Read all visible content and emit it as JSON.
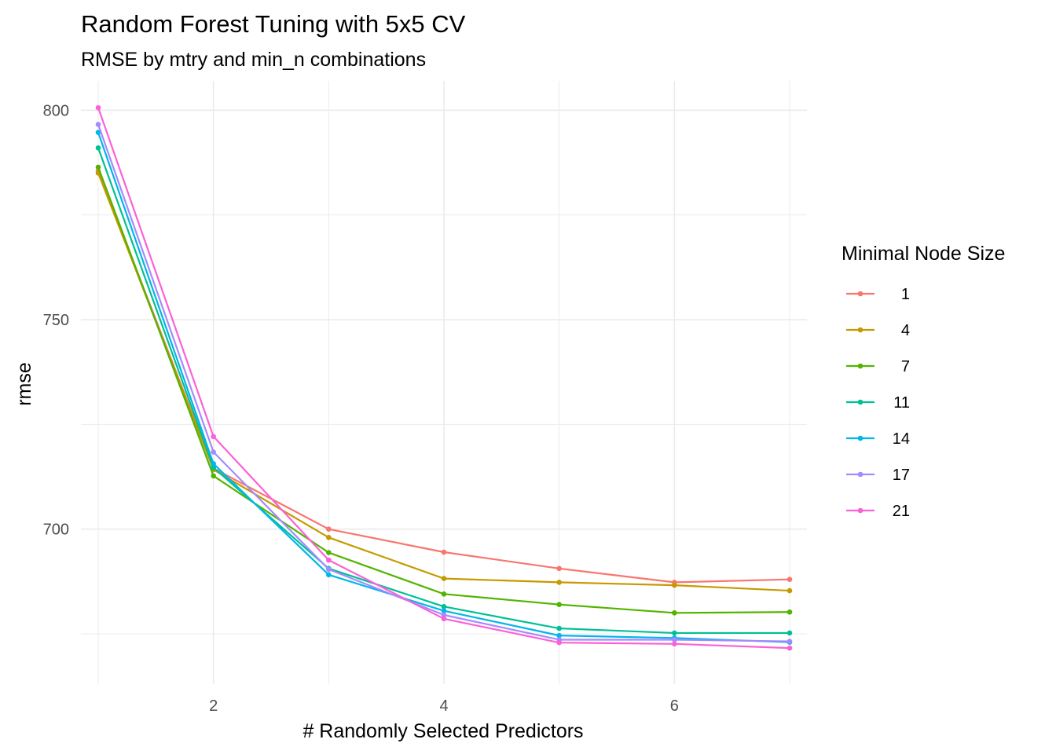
{
  "chart_data": {
    "type": "line",
    "title": "Random Forest Tuning with 5x5 CV",
    "subtitle": "RMSE by mtry and min_n combinations",
    "xlabel": "# Randomly Selected Predictors",
    "ylabel": "rmse",
    "xlim": [
      0.85,
      7.15
    ],
    "ylim": [
      663,
      807
    ],
    "x_ticks": [
      2,
      4,
      6
    ],
    "y_ticks": [
      700,
      750,
      800
    ],
    "grid": true,
    "legend_title": "Minimal Node Size",
    "legend_position": "right",
    "x": [
      1,
      2,
      3,
      4,
      5,
      6,
      7
    ],
    "series": [
      {
        "name": "1",
        "color": "#F8766D",
        "values": [
          785.5,
          714.5,
          700.0,
          694.5,
          690.6,
          687.3,
          688.0
        ]
      },
      {
        "name": "4",
        "color": "#C49A00",
        "values": [
          785.0,
          714.2,
          698.0,
          688.2,
          687.3,
          686.6,
          685.3
        ]
      },
      {
        "name": "7",
        "color": "#53B400",
        "values": [
          786.4,
          712.7,
          694.4,
          684.5,
          682.0,
          680.0,
          680.2
        ]
      },
      {
        "name": "11",
        "color": "#00C094",
        "values": [
          791.0,
          714.7,
          690.6,
          681.5,
          676.3,
          675.2,
          675.2
        ]
      },
      {
        "name": "14",
        "color": "#00B6EB",
        "values": [
          794.7,
          715.6,
          689.1,
          680.5,
          674.6,
          674.0,
          673.0
        ]
      },
      {
        "name": "17",
        "color": "#A58AFF",
        "values": [
          796.6,
          718.4,
          690.4,
          679.5,
          673.6,
          673.6,
          673.2
        ]
      },
      {
        "name": "21",
        "color": "#FB61D7",
        "values": [
          800.6,
          722.1,
          692.6,
          678.6,
          672.9,
          672.6,
          671.6
        ]
      }
    ]
  }
}
